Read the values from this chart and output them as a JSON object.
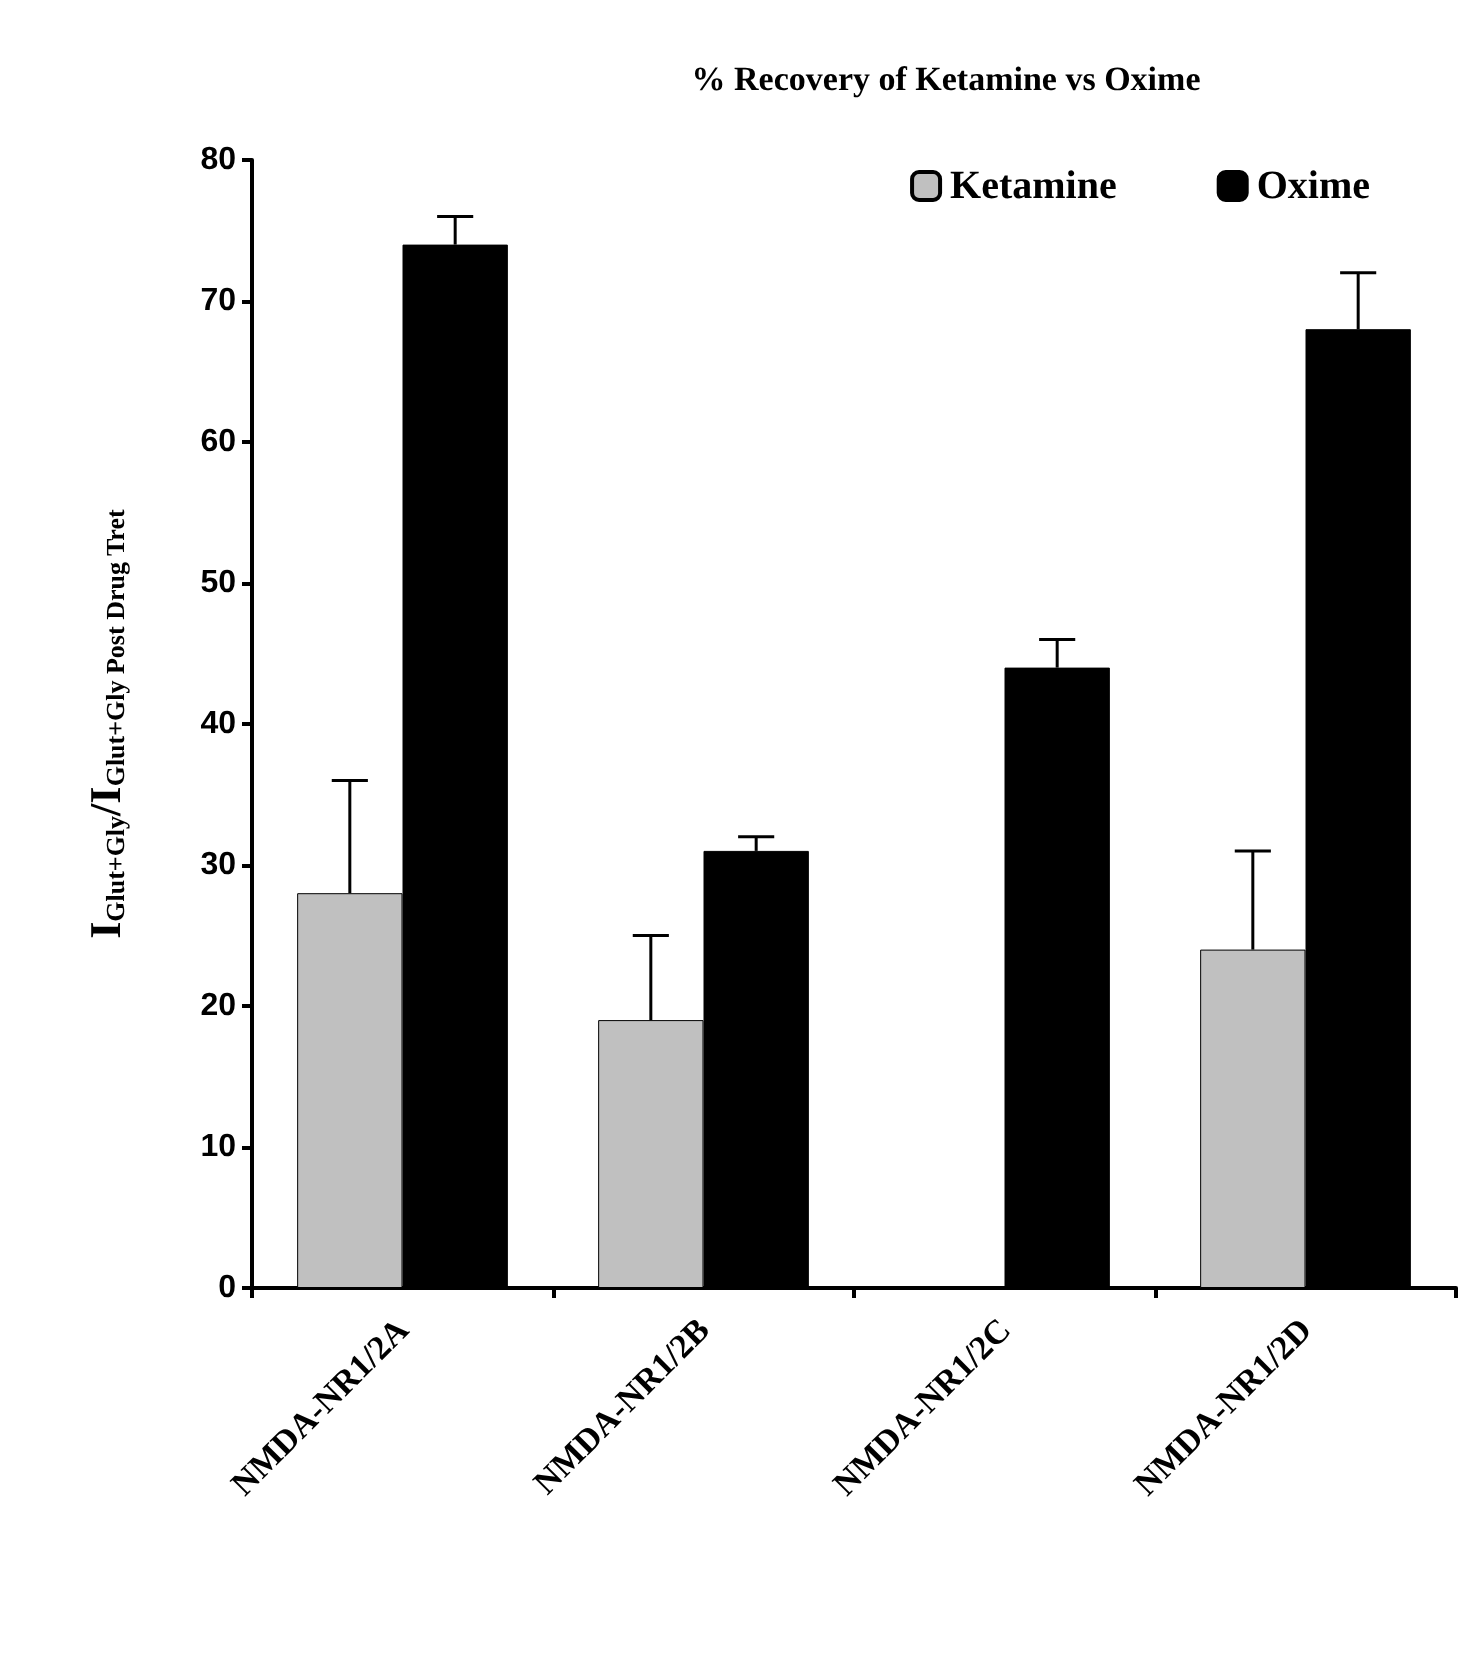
{
  "chart_data": {
    "type": "bar",
    "title": "% Recovery of Ketamine vs Oxime",
    "ylabel": "I$_{Glut+Gly}$/I$_{Glut+Gly Post Drug Tret}$",
    "categories": [
      "NMDA-NR1/2A",
      "NMDA-NR1/2B",
      "NMDA-NR1/2C",
      "NMDA-NR1/2D"
    ],
    "series": [
      {
        "name": "Ketamine",
        "color": "#c0c0c0",
        "values": [
          28,
          19,
          null,
          24
        ],
        "errors": [
          [
            28,
            36
          ],
          [
            19,
            25
          ],
          null,
          [
            24,
            31
          ]
        ]
      },
      {
        "name": "Oxime",
        "color": "#000000",
        "values": [
          74,
          31,
          44,
          68
        ],
        "errors": [
          [
            74,
            76
          ],
          [
            31,
            32
          ],
          [
            44,
            46
          ],
          [
            68,
            72
          ]
        ]
      }
    ],
    "ylim": [
      0,
      80
    ],
    "yticks": [
      0,
      10,
      20,
      30,
      40,
      50,
      60,
      70,
      80
    ],
    "grid": false,
    "legend": "top right"
  }
}
